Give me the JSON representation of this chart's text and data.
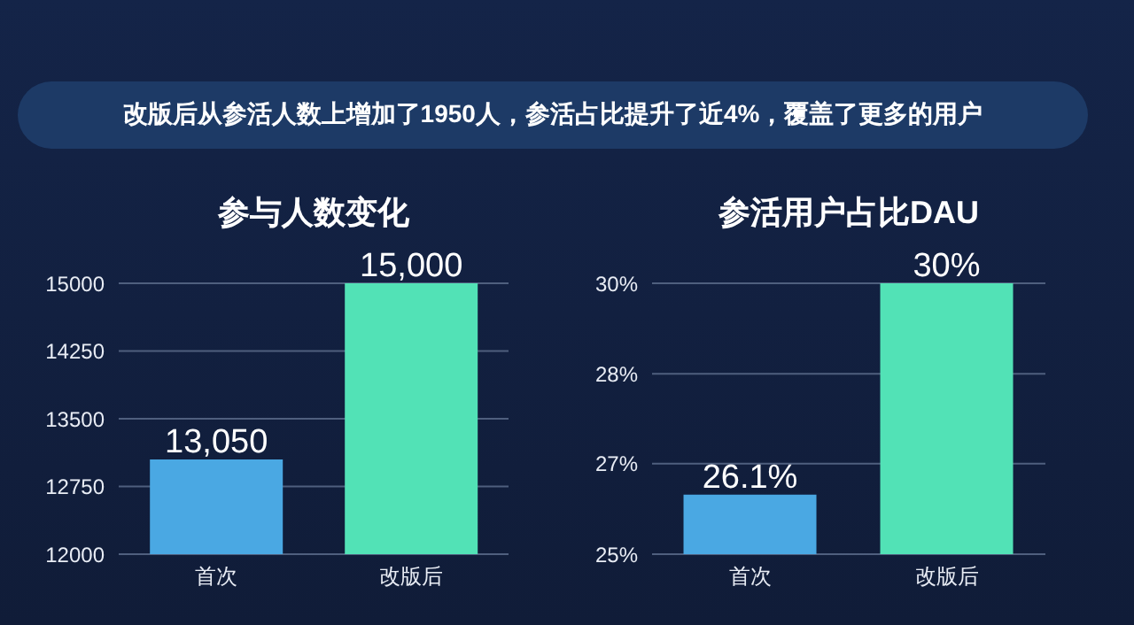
{
  "chart_data": [
    {
      "type": "bar",
      "title": "参与人数变化",
      "annotations": [
        "改版后从参活人数上增加了1950人，参活占比提升了近4%，覆盖了更多的用户"
      ],
      "categories": [
        "首次",
        "改版后"
      ],
      "values": [
        13050,
        15000
      ],
      "value_labels": [
        "13,050",
        "15,000"
      ],
      "colors": [
        "#4aa8e3",
        "#52e2b6"
      ],
      "ylim": [
        12000,
        15000
      ],
      "yticks": [
        12000,
        12750,
        13500,
        14250,
        15000
      ],
      "grid": "y",
      "legend": false
    },
    {
      "type": "bar",
      "title": "参活用户占比DAU",
      "categories": [
        "首次",
        "改版后"
      ],
      "values": [
        26.1,
        30
      ],
      "value_labels": [
        "26.1%",
        "30%"
      ],
      "colors": [
        "#4aa8e3",
        "#52e2b6"
      ],
      "ylim": [
        25,
        30
      ],
      "yticks": [
        {
          "value": 25,
          "label": "25%"
        },
        {
          "value": 26.67,
          "label": "27%"
        },
        {
          "value": 28.33,
          "label": "28%"
        },
        {
          "value": 30,
          "label": "30%"
        }
      ],
      "grid": "y",
      "legend": false
    }
  ]
}
